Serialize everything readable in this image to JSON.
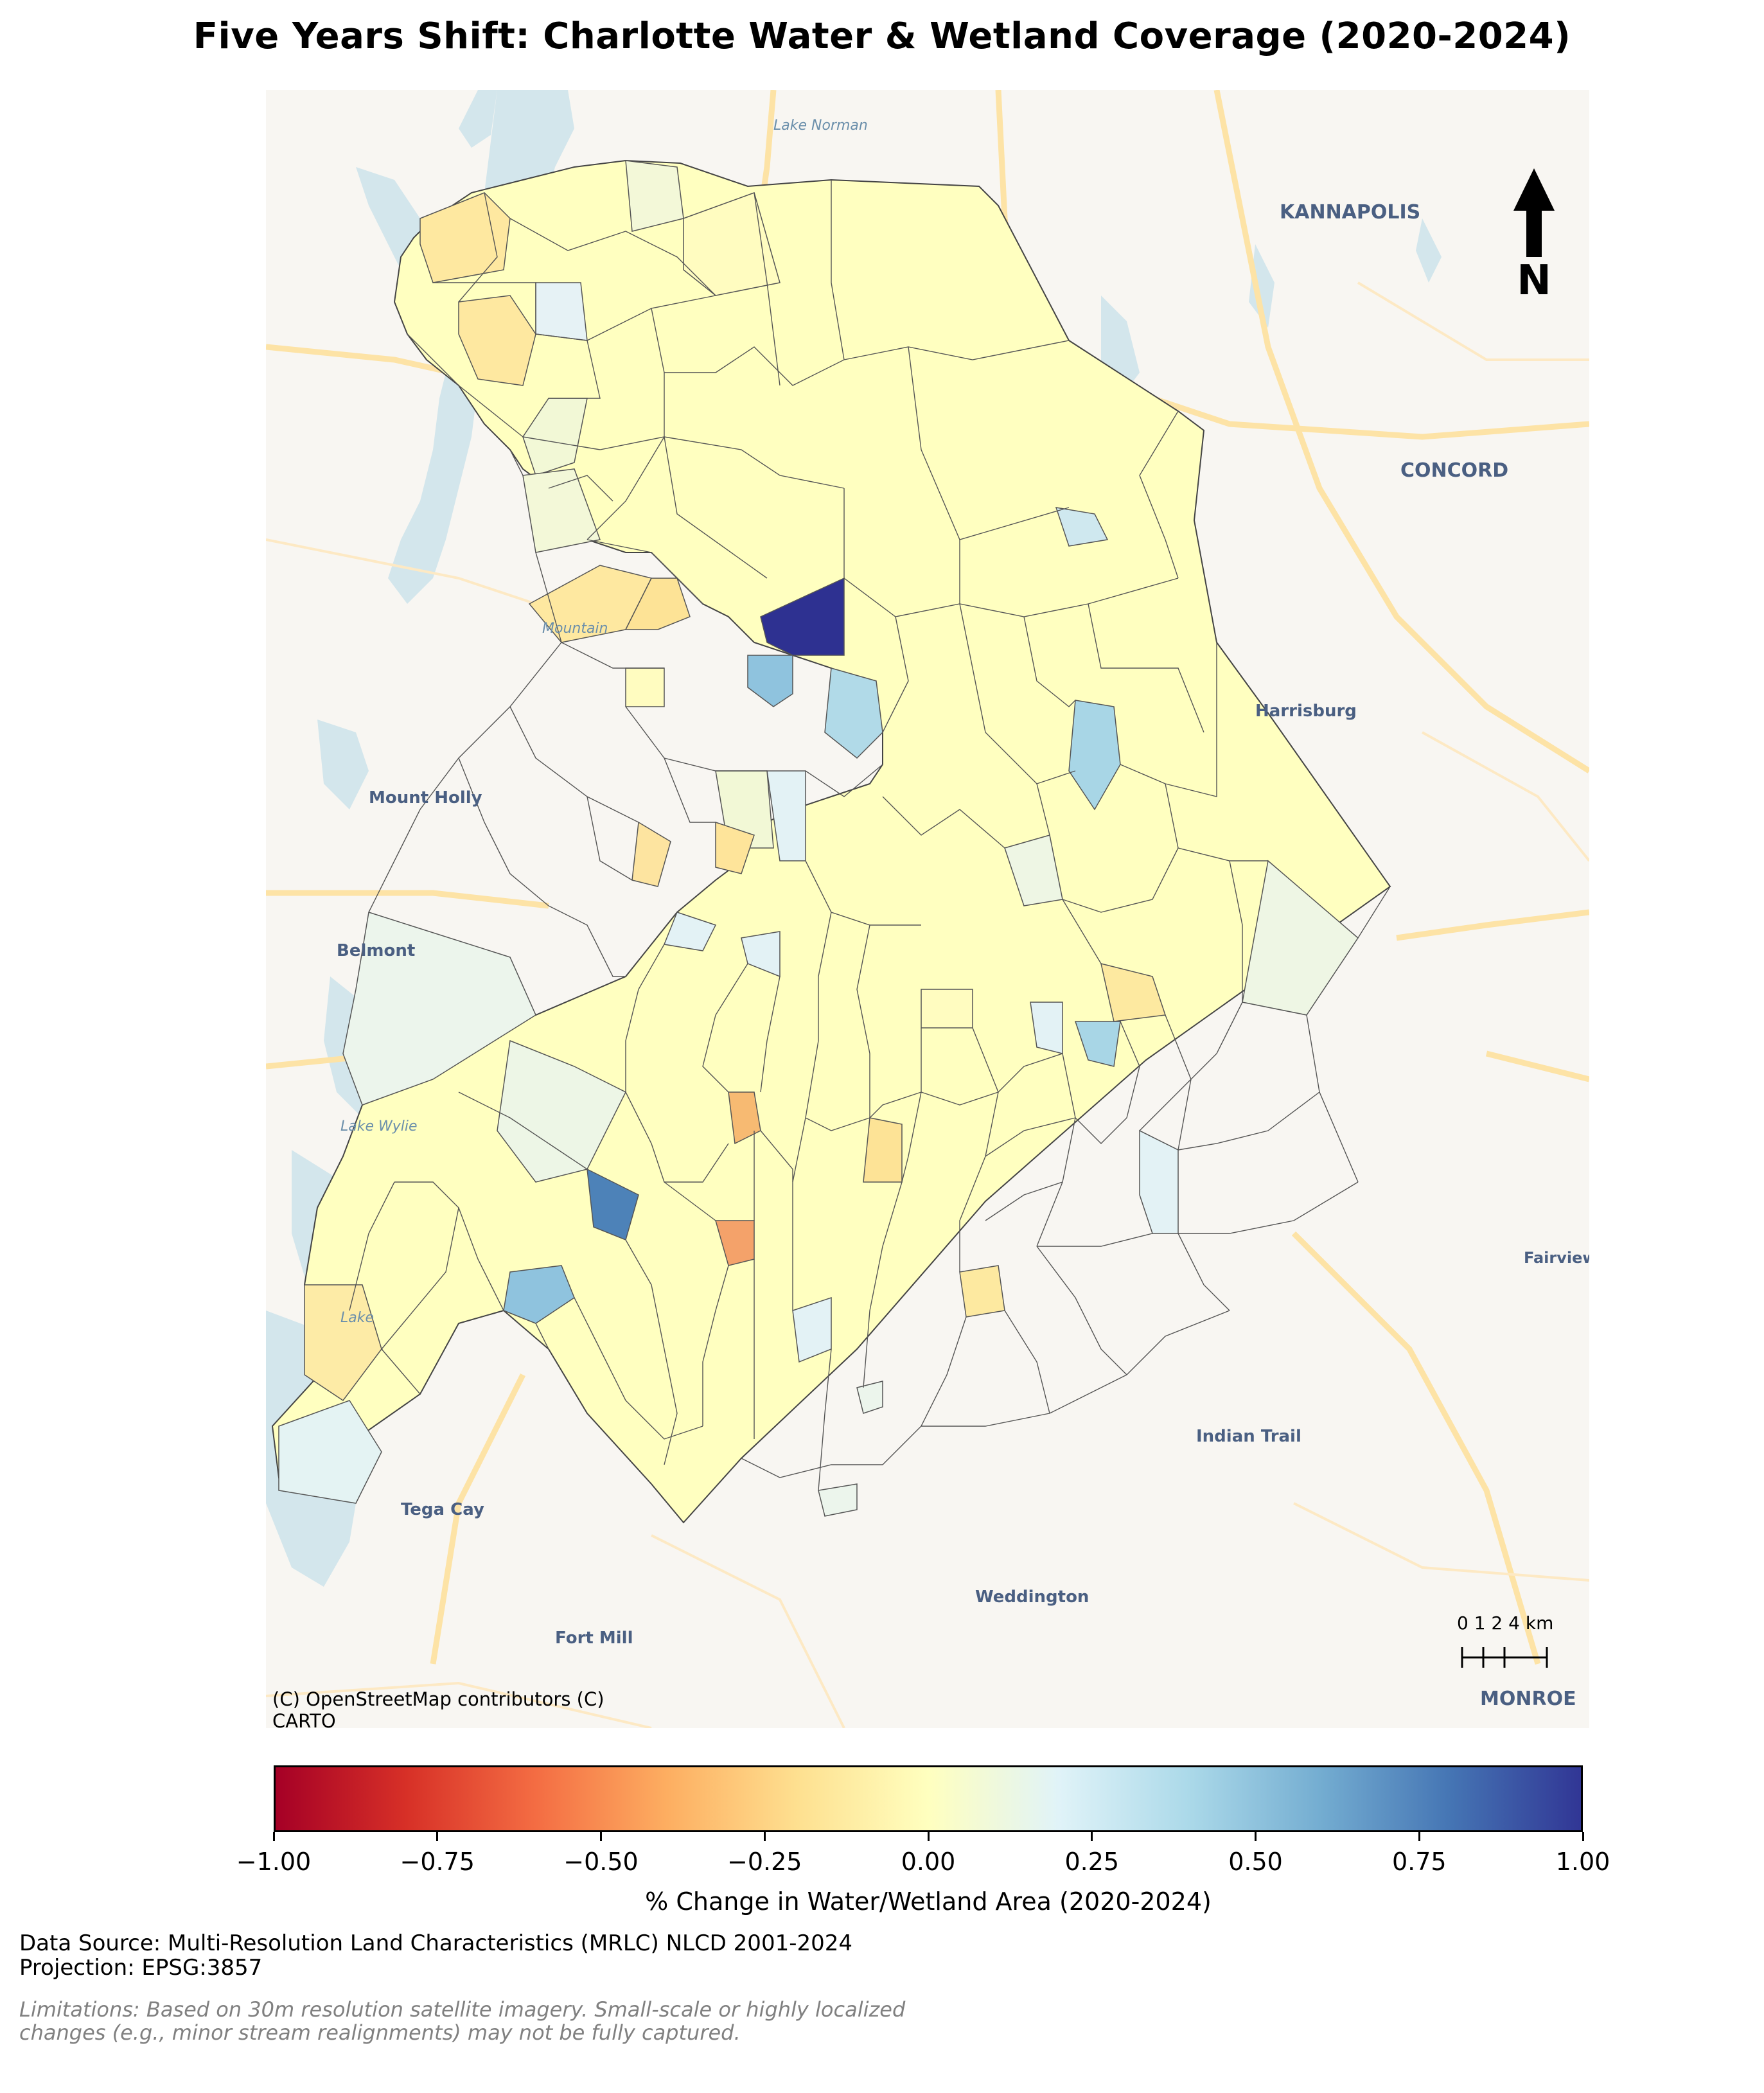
{
  "title": "Five Years Shift: Charlotte Water & Wetland Coverage (2020-2024)",
  "map": {
    "basemap_attribution_line1": "(C) OpenStreetMap contributors (C)",
    "basemap_attribution_line2": "CARTO",
    "place_labels": [
      "Lake Norman",
      "KANNAPOLIS",
      "CONCORD",
      "Harrisburg",
      "Mountain",
      "Mount Holly",
      "Belmont",
      "Lake Wylie",
      "Lake",
      "Tega Cay",
      "Fort Mill",
      "Weddington",
      "Indian Trail",
      "Fairview",
      "MONROE"
    ],
    "north_arrow_label": "N",
    "scale_bar_label": "0 1 2  4 km",
    "colors": {
      "water": "#d3e6ec",
      "land": "#f8f6f2",
      "roads": "#fde3a6",
      "boundary": "#333333"
    }
  },
  "colorbar": {
    "colormap": "RdYlBu",
    "ticks": [
      "−1.00",
      "−0.75",
      "−0.50",
      "−0.25",
      "0.00",
      "0.25",
      "0.50",
      "0.75",
      "1.00"
    ],
    "label": "% Change in Water/Wetland Area (2020-2024)",
    "range": [
      -1.0,
      1.0
    ],
    "colors": [
      "#a50026",
      "#d73027",
      "#f46d43",
      "#fdae61",
      "#fee090",
      "#ffffbf",
      "#e0f3f8",
      "#abd9e9",
      "#74add1",
      "#4575b4",
      "#313695"
    ]
  },
  "footer": {
    "source": "Data Source: Multi-Resolution Land Characteristics (MRLC) NLCD 2001-2024",
    "projection": "Projection: EPSG:3857",
    "limitations_line1": "Limitations: Based on 30m resolution satellite imagery. Small-scale or highly localized",
    "limitations_line2": "changes (e.g., minor stream realignments) may not be fully captured."
  }
}
